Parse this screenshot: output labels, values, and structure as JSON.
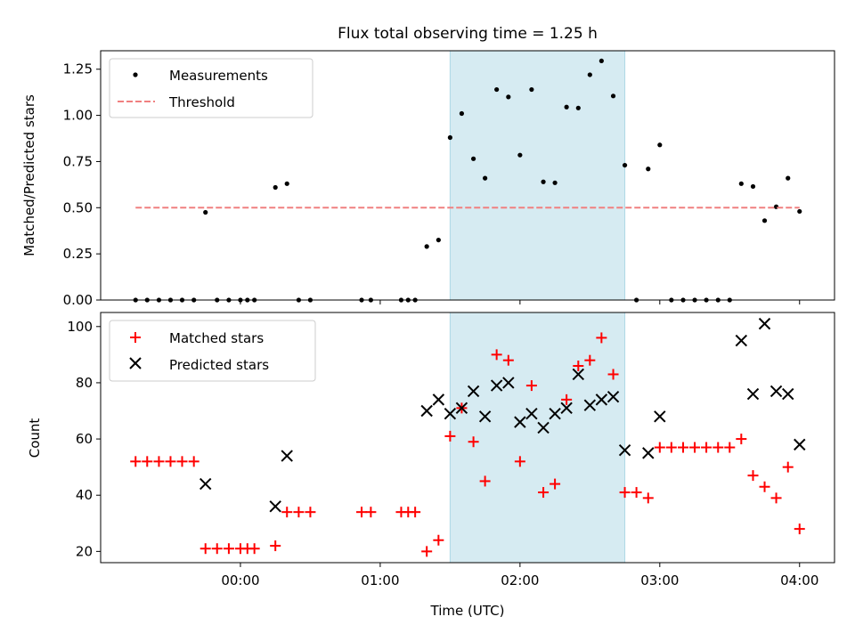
{
  "title": "Flux total observing time = 1.25 h",
  "xlabel": "Time (UTC)",
  "xticks": [
    "00:00",
    "01:00",
    "02:00",
    "03:00",
    "04:00"
  ],
  "chart_data": [
    {
      "type": "scatter",
      "title": "Flux total observing time = 1.25 h",
      "ylabel": "Matched/Predicted stars",
      "ylim": [
        0,
        1.35
      ],
      "yticks": [
        "0.00",
        "0.25",
        "0.50",
        "0.75",
        "1.00",
        "1.25"
      ],
      "legend_position": "upper-left",
      "highlight_span": {
        "x": [
          1.5,
          2.75
        ],
        "color": "#add8e6"
      },
      "series": [
        {
          "name": "Measurements",
          "color": "#000000",
          "marker": "dot",
          "x": [
            -0.75,
            -0.667,
            -0.583,
            -0.5,
            -0.417,
            -0.333,
            -0.25,
            -0.167,
            -0.083,
            0.0,
            0.05,
            0.1,
            0.25,
            0.333,
            0.417,
            0.5,
            0.867,
            0.933,
            1.15,
            1.2,
            1.25,
            1.333,
            1.417,
            1.5,
            1.583,
            1.667,
            1.75,
            1.833,
            1.917,
            2.0,
            2.083,
            2.167,
            2.25,
            2.333,
            2.417,
            2.5,
            2.583,
            2.667,
            2.75,
            2.833,
            2.917,
            3.0,
            3.083,
            3.167,
            3.25,
            3.333,
            3.417,
            3.5,
            3.583,
            3.667,
            3.75,
            3.833,
            3.917,
            4.0
          ],
          "y": [
            0.0,
            0.0,
            0.0,
            0.0,
            0.0,
            0.0,
            0.475,
            0.0,
            0.0,
            0.0,
            0.0,
            0.0,
            0.61,
            0.63,
            0.0,
            0.0,
            0.0,
            0.0,
            0.0,
            0.0,
            0.0,
            0.29,
            0.325,
            0.88,
            1.01,
            0.765,
            0.66,
            1.14,
            1.1,
            0.785,
            1.14,
            0.64,
            0.635,
            1.045,
            1.04,
            1.22,
            1.295,
            1.105,
            0.73,
            0.0,
            0.71,
            0.84,
            0.0,
            0.0,
            0.0,
            0.0,
            0.0,
            0.0,
            0.63,
            0.615,
            0.43,
            0.505,
            0.66,
            0.48
          ]
        },
        {
          "name": "Threshold",
          "color": "#f08080",
          "style": "dashed",
          "x": [
            -0.75,
            4.0
          ],
          "y": [
            0.5,
            0.5
          ]
        }
      ]
    },
    {
      "type": "scatter",
      "ylabel": "Count",
      "ylim": [
        16,
        105
      ],
      "yticks": [
        "20",
        "40",
        "60",
        "80",
        "100"
      ],
      "legend_position": "upper-left",
      "highlight_span": {
        "x": [
          1.5,
          2.75
        ],
        "color": "#add8e6"
      },
      "series": [
        {
          "name": "Matched stars",
          "color": "#ff0000",
          "marker": "plus",
          "x": [
            -0.75,
            -0.667,
            -0.583,
            -0.5,
            -0.417,
            -0.333,
            -0.25,
            -0.167,
            -0.083,
            0.0,
            0.05,
            0.1,
            0.25,
            0.333,
            0.417,
            0.5,
            0.867,
            0.933,
            1.15,
            1.2,
            1.25,
            1.333,
            1.417,
            1.5,
            1.583,
            1.667,
            1.75,
            1.833,
            1.917,
            2.0,
            2.083,
            2.167,
            2.25,
            2.333,
            2.417,
            2.5,
            2.583,
            2.667,
            2.75,
            2.833,
            2.917,
            3.0,
            3.083,
            3.167,
            3.25,
            3.333,
            3.417,
            3.5,
            3.583,
            3.667,
            3.75,
            3.833,
            3.917,
            4.0
          ],
          "y": [
            52,
            52,
            52,
            52,
            52,
            52,
            21,
            21,
            21,
            21,
            21,
            21,
            22,
            34,
            34,
            34,
            34,
            34,
            34,
            34,
            34,
            20,
            24,
            61,
            71,
            59,
            45,
            90,
            88,
            52,
            79,
            41,
            44,
            74,
            86,
            88,
            96,
            83,
            41,
            41,
            39,
            57,
            57,
            57,
            57,
            57,
            57,
            57,
            60,
            47,
            43,
            39,
            50,
            28
          ]
        },
        {
          "name": "Predicted stars",
          "color": "#000000",
          "marker": "x",
          "x": [
            -0.25,
            0.25,
            0.333,
            1.333,
            1.417,
            1.5,
            1.583,
            1.667,
            1.75,
            1.833,
            1.917,
            2.0,
            2.083,
            2.167,
            2.25,
            2.333,
            2.417,
            2.5,
            2.583,
            2.667,
            2.75,
            2.917,
            3.0,
            3.583,
            3.667,
            3.75,
            3.833,
            3.917,
            4.0
          ],
          "y": [
            44,
            36,
            54,
            70,
            74,
            69,
            71,
            77,
            68,
            79,
            80,
            66,
            69,
            64,
            69,
            71,
            83,
            72,
            74,
            75,
            56,
            55,
            68,
            95,
            76,
            101,
            77,
            76,
            58
          ]
        }
      ]
    }
  ]
}
